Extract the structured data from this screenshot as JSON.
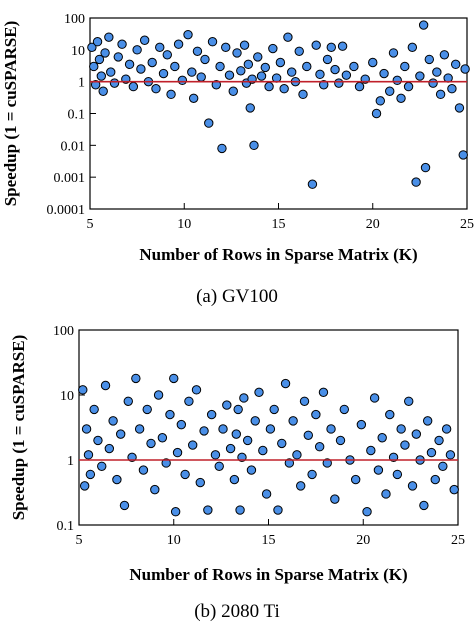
{
  "chart_data": [
    {
      "type": "scatter",
      "caption": "(a)  GV100",
      "xlabel": "Number of Rows in Sparse Matrix (K)",
      "ylabel": "Speedup (1 = cuSPARSE)",
      "xlim": [
        5,
        25
      ],
      "ylim": [
        0.0001,
        100
      ],
      "yscale": "log",
      "xticks": [
        5,
        10,
        15,
        20,
        25
      ],
      "xtick_labels": [
        "5",
        "10",
        "15",
        "20",
        "25"
      ],
      "yticks": [
        0.0001,
        0.001,
        0.01,
        0.1,
        1,
        10,
        100
      ],
      "ytick_labels": [
        "0.0001",
        "0.001",
        "0.01",
        "0.1",
        "1",
        "10",
        "100"
      ],
      "reference_line": 1,
      "colors": {
        "points": "#4a8fe7",
        "outline": "#000000",
        "reference": "#c0202a"
      },
      "series": [
        {
          "points": [
            [
              5.1,
              12
            ],
            [
              5.2,
              3
            ],
            [
              5.3,
              0.8
            ],
            [
              5.4,
              18
            ],
            [
              5.5,
              5
            ],
            [
              5.6,
              1.5
            ],
            [
              5.7,
              0.5
            ],
            [
              5.8,
              8
            ],
            [
              6.0,
              25
            ],
            [
              6.1,
              2
            ],
            [
              6.3,
              0.9
            ],
            [
              6.5,
              6
            ],
            [
              6.7,
              15
            ],
            [
              6.9,
              1.2
            ],
            [
              7.1,
              3.5
            ],
            [
              7.3,
              0.7
            ],
            [
              7.5,
              10
            ],
            [
              7.7,
              2.5
            ],
            [
              7.9,
              20
            ],
            [
              8.1,
              1
            ],
            [
              8.3,
              4
            ],
            [
              8.5,
              0.6
            ],
            [
              8.7,
              12
            ],
            [
              8.9,
              1.8
            ],
            [
              9.1,
              7
            ],
            [
              9.3,
              0.4
            ],
            [
              9.5,
              3
            ],
            [
              9.7,
              15
            ],
            [
              9.9,
              1.1
            ],
            [
              10.2,
              30
            ],
            [
              10.4,
              2
            ],
            [
              10.5,
              0.3
            ],
            [
              10.7,
              9
            ],
            [
              10.9,
              1.4
            ],
            [
              11.1,
              5
            ],
            [
              11.3,
              0.05
            ],
            [
              11.5,
              18
            ],
            [
              11.7,
              0.8
            ],
            [
              11.9,
              3
            ],
            [
              12.0,
              0.008
            ],
            [
              12.2,
              12
            ],
            [
              12.4,
              1.6
            ],
            [
              12.6,
              0.5
            ],
            [
              12.8,
              8
            ],
            [
              13.0,
              2.2
            ],
            [
              13.2,
              14
            ],
            [
              13.3,
              0.9
            ],
            [
              13.4,
              3.5
            ],
            [
              13.5,
              0.15
            ],
            [
              13.6,
              1.2
            ],
            [
              13.7,
              0.01
            ],
            [
              13.9,
              6
            ],
            [
              14.1,
              1.5
            ],
            [
              14.3,
              2.8
            ],
            [
              14.5,
              0.7
            ],
            [
              14.7,
              11
            ],
            [
              14.9,
              1.3
            ],
            [
              15.1,
              4
            ],
            [
              15.3,
              0.6
            ],
            [
              15.5,
              25
            ],
            [
              15.7,
              2
            ],
            [
              15.9,
              1
            ],
            [
              16.1,
              9
            ],
            [
              16.3,
              0.4
            ],
            [
              16.5,
              3
            ],
            [
              16.8,
              0.0006
            ],
            [
              17.0,
              14
            ],
            [
              17.2,
              1.7
            ],
            [
              17.4,
              0.8
            ],
            [
              17.6,
              5
            ],
            [
              17.8,
              12
            ],
            [
              18.0,
              2.4
            ],
            [
              18.2,
              0.9
            ],
            [
              18.4,
              13
            ],
            [
              18.6,
              1.6
            ],
            [
              19.0,
              3
            ],
            [
              19.3,
              0.7
            ],
            [
              19.6,
              1.2
            ],
            [
              20.0,
              4
            ],
            [
              20.2,
              0.1
            ],
            [
              20.4,
              0.25
            ],
            [
              20.6,
              1.8
            ],
            [
              20.9,
              0.5
            ],
            [
              21.1,
              8
            ],
            [
              21.3,
              1.1
            ],
            [
              21.5,
              0.3
            ],
            [
              21.7,
              3
            ],
            [
              21.9,
              0.7
            ],
            [
              22.1,
              12
            ],
            [
              22.3,
              0.0007
            ],
            [
              22.5,
              1.5
            ],
            [
              22.7,
              60
            ],
            [
              22.8,
              0.002
            ],
            [
              23.0,
              5
            ],
            [
              23.2,
              0.9
            ],
            [
              23.4,
              2
            ],
            [
              23.6,
              0.4
            ],
            [
              23.8,
              7
            ],
            [
              24.0,
              1.3
            ],
            [
              24.2,
              0.6
            ],
            [
              24.4,
              3.5
            ],
            [
              24.6,
              0.15
            ],
            [
              24.8,
              0.005
            ],
            [
              24.9,
              2.5
            ]
          ]
        }
      ]
    },
    {
      "type": "scatter",
      "caption": "(b)  2080 Ti",
      "xlabel": "Number of Rows in Sparse Matrix (K)",
      "ylabel": "Speedup (1 = cuSPARSE)",
      "xlim": [
        5,
        25
      ],
      "ylim": [
        0.1,
        100
      ],
      "yscale": "log",
      "xticks": [
        5,
        10,
        15,
        20,
        25
      ],
      "xtick_labels": [
        "5",
        "10",
        "15",
        "20",
        "25"
      ],
      "yticks": [
        0.1,
        1,
        10,
        100
      ],
      "ytick_labels": [
        "0.1",
        "1",
        "10",
        "100"
      ],
      "reference_line": 1,
      "colors": {
        "points": "#4a8fe7",
        "outline": "#000000",
        "reference": "#c0202a"
      },
      "series": [
        {
          "points": [
            [
              5.2,
              12
            ],
            [
              5.3,
              0.4
            ],
            [
              5.4,
              3
            ],
            [
              5.5,
              1.2
            ],
            [
              5.6,
              0.6
            ],
            [
              5.8,
              6
            ],
            [
              6.0,
              2
            ],
            [
              6.2,
              0.8
            ],
            [
              6.4,
              14
            ],
            [
              6.6,
              1.5
            ],
            [
              6.8,
              4
            ],
            [
              7.0,
              0.5
            ],
            [
              7.2,
              2.5
            ],
            [
              7.4,
              0.2
            ],
            [
              7.6,
              8
            ],
            [
              7.8,
              1.1
            ],
            [
              8.0,
              18
            ],
            [
              8.2,
              3
            ],
            [
              8.4,
              0.7
            ],
            [
              8.6,
              6
            ],
            [
              8.8,
              1.8
            ],
            [
              9.0,
              0.35
            ],
            [
              9.2,
              10
            ],
            [
              9.4,
              2.2
            ],
            [
              9.6,
              0.9
            ],
            [
              9.8,
              5
            ],
            [
              10.0,
              18
            ],
            [
              10.1,
              0.16
            ],
            [
              10.2,
              1.3
            ],
            [
              10.4,
              3.5
            ],
            [
              10.6,
              0.6
            ],
            [
              10.8,
              8
            ],
            [
              11.0,
              1.7
            ],
            [
              11.2,
              12
            ],
            [
              11.4,
              0.45
            ],
            [
              11.6,
              2.8
            ],
            [
              11.8,
              0.17
            ],
            [
              12.0,
              5
            ],
            [
              12.2,
              1.2
            ],
            [
              12.4,
              0.8
            ],
            [
              12.6,
              3
            ],
            [
              12.8,
              7
            ],
            [
              13.0,
              1.5
            ],
            [
              13.2,
              0.5
            ],
            [
              13.3,
              2.5
            ],
            [
              13.4,
              6
            ],
            [
              13.5,
              0.17
            ],
            [
              13.6,
              1.1
            ],
            [
              13.7,
              9
            ],
            [
              13.9,
              2
            ],
            [
              14.1,
              0.7
            ],
            [
              14.3,
              4
            ],
            [
              14.5,
              11
            ],
            [
              14.7,
              1.4
            ],
            [
              14.9,
              0.3
            ],
            [
              15.1,
              3
            ],
            [
              15.3,
              6
            ],
            [
              15.5,
              0.17
            ],
            [
              15.7,
              1.8
            ],
            [
              15.9,
              15
            ],
            [
              16.1,
              0.9
            ],
            [
              16.3,
              4
            ],
            [
              16.5,
              1.2
            ],
            [
              16.7,
              0.4
            ],
            [
              16.9,
              8
            ],
            [
              17.1,
              2.4
            ],
            [
              17.3,
              0.6
            ],
            [
              17.5,
              5
            ],
            [
              17.7,
              1.6
            ],
            [
              17.9,
              11
            ],
            [
              18.1,
              0.9
            ],
            [
              18.3,
              3
            ],
            [
              18.5,
              0.25
            ],
            [
              18.8,
              2
            ],
            [
              19.0,
              6
            ],
            [
              19.3,
              1
            ],
            [
              19.6,
              0.5
            ],
            [
              19.9,
              3.5
            ],
            [
              20.2,
              0.16
            ],
            [
              20.4,
              1.4
            ],
            [
              20.6,
              9
            ],
            [
              20.8,
              0.7
            ],
            [
              21.0,
              2.2
            ],
            [
              21.2,
              0.3
            ],
            [
              21.4,
              5
            ],
            [
              21.6,
              1.1
            ],
            [
              21.8,
              0.6
            ],
            [
              22.0,
              3
            ],
            [
              22.2,
              1.7
            ],
            [
              22.4,
              8
            ],
            [
              22.6,
              0.4
            ],
            [
              22.8,
              2.5
            ],
            [
              23.0,
              1
            ],
            [
              23.2,
              0.2
            ],
            [
              23.4,
              4
            ],
            [
              23.6,
              1.3
            ],
            [
              23.8,
              0.5
            ],
            [
              24.0,
              2
            ],
            [
              24.2,
              0.8
            ],
            [
              24.4,
              3
            ],
            [
              24.6,
              1.2
            ],
            [
              24.8,
              0.35
            ]
          ]
        }
      ]
    }
  ]
}
